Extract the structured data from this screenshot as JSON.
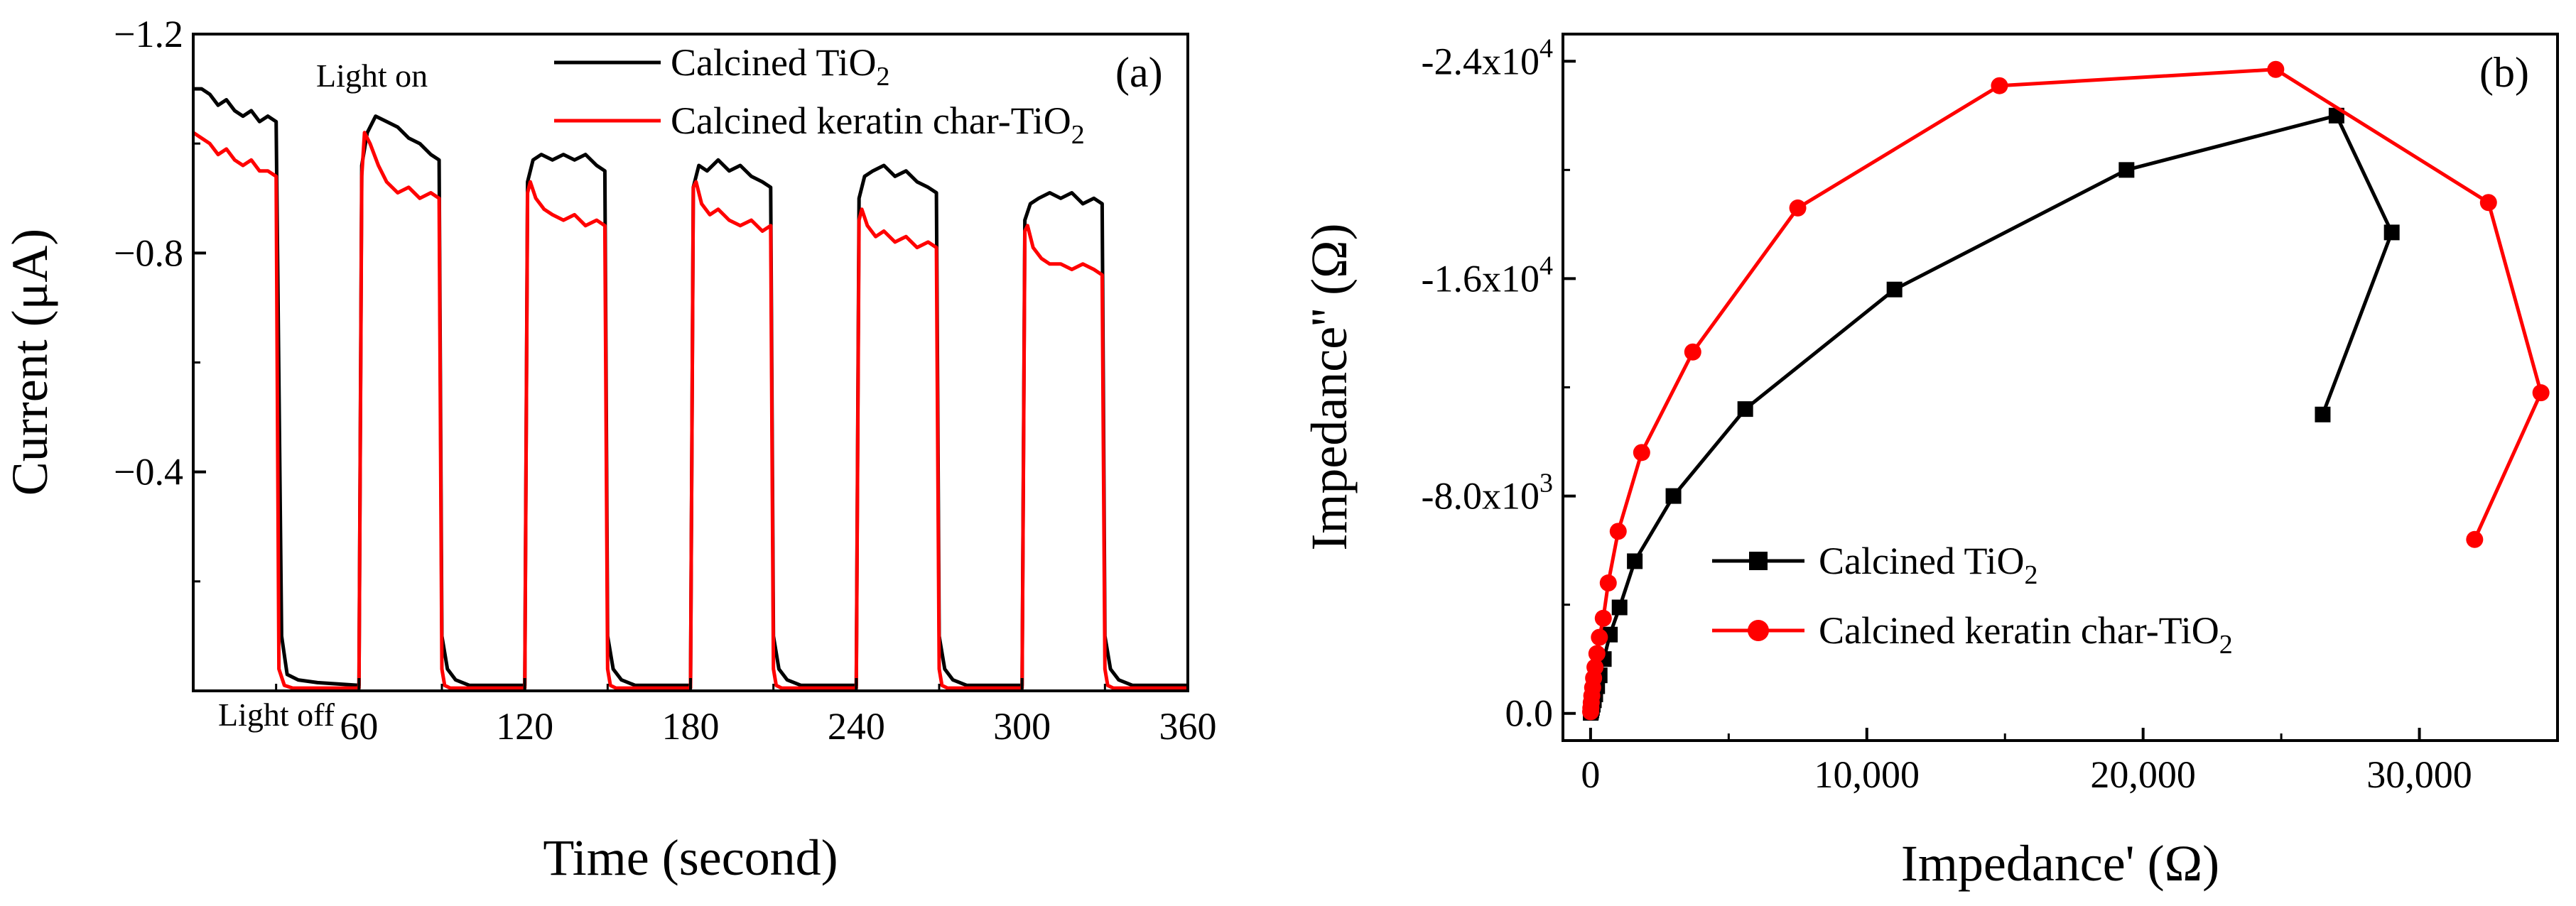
{
  "chart_data": [
    {
      "type": "line",
      "panel_label": "(a)",
      "xlabel": "Time (second)",
      "ylabel": "Current (μA)",
      "xlim": [
        0,
        360
      ],
      "ylim": [
        0.0,
        -1.2
      ],
      "x_ticks": [
        60,
        120,
        180,
        240,
        300,
        360
      ],
      "x_tick_labels": [
        "60",
        "120",
        "180",
        "240",
        "300",
        "360"
      ],
      "y_ticks": [
        -0.4,
        -0.8,
        -1.2
      ],
      "y_tick_labels": [
        "−0.4",
        "−0.8",
        "−1.2"
      ],
      "annotations": {
        "light_on": "Light on",
        "light_off": "Light off"
      },
      "legend": [
        "Calcined TiO",
        "Calcined keratin char-TiO"
      ],
      "subscript": "2",
      "colors": {
        "black": "#000000",
        "red": "#ff0000",
        "axis": "#000000"
      },
      "series": [
        {
          "name": "Calcined TiO2",
          "color": "#000000",
          "x": [
            0,
            3,
            6,
            9,
            12,
            15,
            18,
            21,
            24,
            27,
            30,
            32,
            34,
            38,
            45,
            60,
            61,
            63,
            66,
            70,
            74,
            78,
            82,
            86,
            89,
            90,
            92,
            95,
            100,
            120,
            121,
            123,
            126,
            130,
            134,
            138,
            142,
            146,
            149,
            150,
            152,
            155,
            160,
            180,
            181,
            183,
            186,
            190,
            194,
            198,
            202,
            206,
            209,
            210,
            212,
            215,
            220,
            240,
            241,
            243,
            246,
            250,
            254,
            258,
            262,
            266,
            269,
            270,
            272,
            275,
            280,
            300,
            301,
            303,
            306,
            310,
            314,
            318,
            322,
            326,
            329,
            330,
            332,
            335,
            340,
            360
          ],
          "values": [
            -1.1,
            -1.1,
            -1.09,
            -1.07,
            -1.08,
            -1.06,
            -1.05,
            -1.06,
            -1.04,
            -1.05,
            -1.04,
            -0.1,
            -0.03,
            -0.02,
            -0.015,
            -0.01,
            -0.96,
            -1.02,
            -1.05,
            -1.04,
            -1.03,
            -1.01,
            -1.0,
            -0.98,
            -0.97,
            -0.1,
            -0.04,
            -0.02,
            -0.01,
            -0.01,
            -0.93,
            -0.97,
            -0.98,
            -0.97,
            -0.98,
            -0.97,
            -0.98,
            -0.96,
            -0.95,
            -0.1,
            -0.04,
            -0.02,
            -0.01,
            -0.01,
            -0.92,
            -0.96,
            -0.95,
            -0.97,
            -0.95,
            -0.96,
            -0.94,
            -0.93,
            -0.92,
            -0.1,
            -0.04,
            -0.02,
            -0.01,
            -0.01,
            -0.9,
            -0.94,
            -0.95,
            -0.96,
            -0.94,
            -0.95,
            -0.93,
            -0.92,
            -0.91,
            -0.1,
            -0.04,
            -0.02,
            -0.01,
            -0.01,
            -0.86,
            -0.89,
            -0.9,
            -0.91,
            -0.9,
            -0.91,
            -0.89,
            -0.9,
            -0.89,
            -0.1,
            -0.04,
            -0.02,
            -0.01,
            -0.01
          ]
        },
        {
          "name": "Calcined keratin char-TiO2",
          "color": "#ff0000",
          "x": [
            0,
            3,
            6,
            9,
            12,
            15,
            18,
            21,
            24,
            27,
            30,
            31,
            33,
            36,
            60,
            61,
            62,
            64,
            67,
            70,
            74,
            78,
            82,
            86,
            89,
            90,
            91,
            93,
            96,
            120,
            121,
            122,
            124,
            127,
            130,
            134,
            138,
            142,
            146,
            149,
            150,
            151,
            153,
            156,
            180,
            181,
            182,
            184,
            187,
            190,
            194,
            198,
            202,
            206,
            209,
            210,
            211,
            213,
            216,
            240,
            241,
            242,
            244,
            247,
            250,
            254,
            258,
            262,
            266,
            269,
            270,
            271,
            273,
            276,
            300,
            301,
            302,
            304,
            307,
            310,
            314,
            318,
            322,
            326,
            329,
            330,
            331,
            333,
            336,
            360
          ],
          "values": [
            -1.02,
            -1.01,
            -1.0,
            -0.98,
            -0.99,
            -0.97,
            -0.96,
            -0.97,
            -0.95,
            -0.95,
            -0.94,
            -0.04,
            -0.01,
            -0.005,
            -0.005,
            -0.94,
            -1.02,
            -1.0,
            -0.96,
            -0.93,
            -0.91,
            -0.92,
            -0.9,
            -0.91,
            -0.9,
            -0.04,
            -0.01,
            -0.005,
            -0.005,
            -0.005,
            -0.91,
            -0.93,
            -0.9,
            -0.88,
            -0.87,
            -0.86,
            -0.87,
            -0.85,
            -0.86,
            -0.85,
            -0.04,
            -0.01,
            -0.005,
            -0.005,
            -0.005,
            -0.92,
            -0.93,
            -0.89,
            -0.87,
            -0.88,
            -0.86,
            -0.85,
            -0.86,
            -0.84,
            -0.85,
            -0.04,
            -0.01,
            -0.005,
            -0.005,
            -0.005,
            -0.86,
            -0.88,
            -0.85,
            -0.83,
            -0.84,
            -0.82,
            -0.83,
            -0.81,
            -0.82,
            -0.81,
            -0.04,
            -0.01,
            -0.005,
            -0.005,
            -0.005,
            -0.84,
            -0.85,
            -0.81,
            -0.79,
            -0.78,
            -0.78,
            -0.77,
            -0.78,
            -0.77,
            -0.76,
            -0.04,
            -0.01,
            -0.005,
            -0.005,
            -0.005
          ]
        }
      ]
    },
    {
      "type": "scatter",
      "panel_label": "(b)",
      "xlabel": "Impedance' (Ω)",
      "ylabel": "Impedance'' (Ω)",
      "xlim": [
        -1000,
        35000
      ],
      "ylim": [
        1000,
        -25000
      ],
      "x_ticks": [
        0,
        10000,
        20000,
        30000
      ],
      "x_tick_labels": [
        "0",
        "10,000",
        "20,000",
        "30,000"
      ],
      "y_ticks": [
        0,
        -8000,
        -16000,
        -24000
      ],
      "y_tick_labels": [
        {
          "base": "0.0",
          "exp": ""
        },
        {
          "base": "-8.0x10",
          "exp": "3"
        },
        {
          "base": "-1.6x10",
          "exp": "4"
        },
        {
          "base": "-2.4x10",
          "exp": "4"
        }
      ],
      "legend": [
        "Calcined TiO",
        "Calcined keratin char-TiO"
      ],
      "subscript": "2",
      "series": [
        {
          "name": "Calcined TiO2",
          "color": "#000000",
          "marker": "square",
          "x": [
            5,
            15,
            30,
            50,
            80,
            120,
            170,
            240,
            330,
            480,
            700,
            1050,
            1600,
            3000,
            5600,
            11000,
            19400,
            27000,
            29000,
            26500
          ],
          "values": [
            -20,
            -60,
            -120,
            -200,
            -320,
            -480,
            -700,
            -1000,
            -1400,
            -2000,
            -2900,
            -3900,
            -5600,
            -8000,
            -11200,
            -15600,
            -20000,
            -22000,
            -17700,
            -11000
          ]
        },
        {
          "name": "Calcined keratin char-TiO2",
          "color": "#ff0000",
          "marker": "circle",
          "x": [
            3,
            10,
            25,
            45,
            75,
            110,
            160,
            230,
            320,
            460,
            640,
            1000,
            1850,
            3700,
            7500,
            14800,
            24800,
            32500,
            34400,
            32000
          ],
          "values": [
            -60,
            -200,
            -400,
            -650,
            -950,
            -1300,
            -1700,
            -2200,
            -2800,
            -3500,
            -4800,
            -6700,
            -9600,
            -13300,
            -18600,
            -23100,
            -23700,
            -18800,
            -11800,
            -6400
          ]
        }
      ]
    }
  ]
}
